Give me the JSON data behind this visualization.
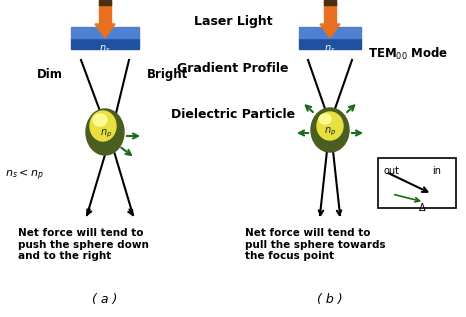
{
  "bg_color": "#ffffff",
  "title_text": "Laser Light",
  "label_gradient": "Gradient Profile",
  "label_tem": "TEM$_{00}$ Mode",
  "label_dim": "Dim",
  "label_bright": "Bright",
  "label_dielectric": "Dielectric Particle",
  "label_ns_lt_np": "$n_s < n_p$",
  "label_ns_a": "$n_s$",
  "label_np_a": "$n_p$",
  "label_ns_b": "$n_s$",
  "label_np_b": "$n_p$",
  "caption_a": "Net force will tend to\npush the sphere down\nand to the right",
  "caption_b": "Net force will tend to\npull the sphere towards\nthe focus point",
  "label_a": "( a )",
  "label_b": "( b )",
  "label_in": "in",
  "label_out": "out",
  "label_delta": "$\\Delta$",
  "arrow_color_orange": "#E87020",
  "arrow_color_black": "#000000",
  "arrow_color_green": "#1A6B1A",
  "lens_color_top": "#5080D0",
  "lens_color_bot": "#2050A0",
  "sphere_outer_color": "#4A5E20",
  "sphere_inner_color": "#C8B800",
  "sphere_glow_color": "#E8E040",
  "sphere_highlight": "#FFFFA0"
}
